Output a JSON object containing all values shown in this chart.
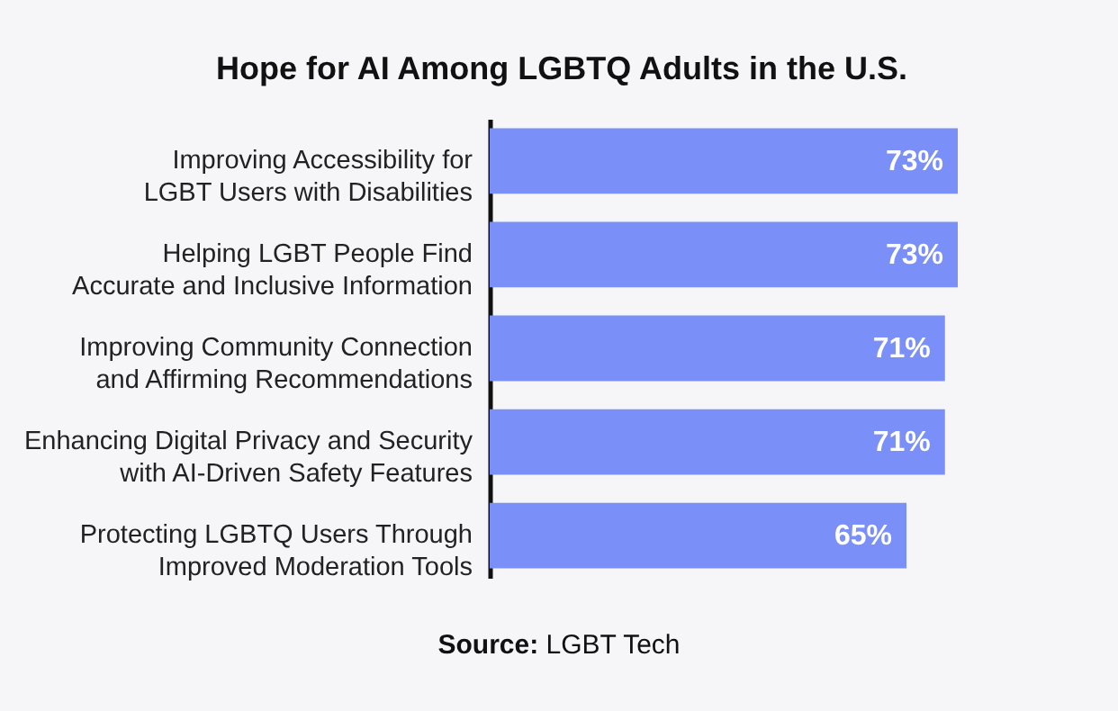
{
  "chart_data": {
    "type": "bar",
    "orientation": "horizontal",
    "title": "Hope for AI Among LGBTQ Adults in the U.S.",
    "categories": [
      "Improving Accessibility for\nLGBT Users with Disabilities",
      "Helping LGBT People Find\nAccurate and Inclusive Information",
      "Improving Community Connection\nand Affirming Recommendations",
      "Enhancing Digital Privacy and Security\nwith AI-Driven Safety Features",
      "Protecting LGBTQ Users Through\nImproved Moderation Tools"
    ],
    "values": [
      73,
      73,
      71,
      71,
      65
    ],
    "value_labels": [
      "73%",
      "73%",
      "71%",
      "71%",
      "65%"
    ],
    "color": "#7a8ff8",
    "annotations": [
      "Source: LGBT Tech"
    ]
  }
}
